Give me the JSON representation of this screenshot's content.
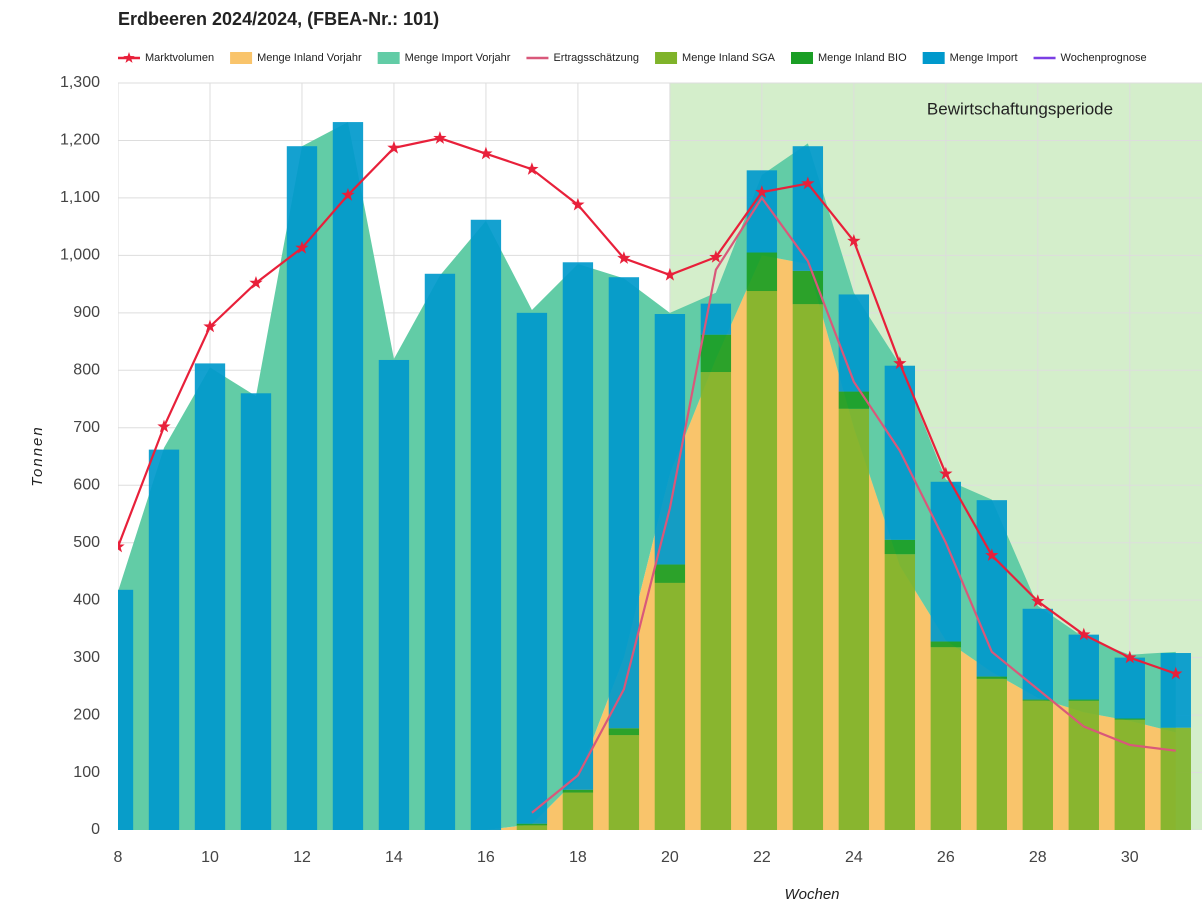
{
  "chart_data": {
    "type": "combo",
    "title": "Erdbeeren 2024/2024, (FBEA-Nr.: 101)",
    "y_label": "Tonnen",
    "x_label": "Wochen",
    "annotation": {
      "text": "Bewirtschaftungsperiode",
      "from": 20
    },
    "x": [
      8,
      9,
      10,
      11,
      12,
      13,
      14,
      15,
      16,
      17,
      18,
      19,
      20,
      21,
      22,
      23,
      24,
      25,
      26,
      27,
      28,
      29,
      30,
      31
    ],
    "xlim": [
      8,
      31.57
    ],
    "xticks": [
      8,
      10,
      12,
      14,
      16,
      18,
      20,
      22,
      24,
      26,
      28,
      30
    ],
    "ylim": [
      0,
      1300
    ],
    "yticks": [
      0,
      100,
      200,
      300,
      400,
      500,
      600,
      700,
      800,
      900,
      {
        "value": 1000,
        "label": "1,000"
      },
      {
        "value": 1100,
        "label": "1,100"
      },
      {
        "value": 1200,
        "label": "1,200"
      },
      {
        "value": 1300,
        "label": "1,300"
      }
    ],
    "grid": true,
    "series": [
      {
        "name": "Marktvolumen",
        "kind": "line",
        "marker": "star",
        "color": "#e8203a",
        "values": [
          493,
          702,
          876,
          952,
          1013,
          1105,
          1187,
          1204,
          1177,
          1150,
          1088,
          995,
          966,
          997,
          1110,
          1125,
          1025,
          812,
          620,
          478,
          398,
          340,
          300,
          272
        ]
      },
      {
        "name": "Menge Inland Vorjahr",
        "kind": "area",
        "stack": "vorjahr",
        "color": "#f9c46b",
        "values": [
          0,
          0,
          0,
          0,
          0,
          0,
          0,
          0,
          0,
          10,
          90,
          300,
          620,
          820,
          1000,
          985,
          700,
          460,
          330,
          275,
          230,
          205,
          190,
          170
        ]
      },
      {
        "name": "Menge Import Vorjahr",
        "kind": "area",
        "stack": "vorjahr",
        "color": "#62cca6",
        "values": [
          415,
          665,
          805,
          755,
          1190,
          1232,
          820,
          965,
          1060,
          895,
          895,
          660,
          280,
          115,
          140,
          210,
          235,
          350,
          280,
          300,
          160,
          130,
          115,
          140
        ]
      },
      {
        "name": "Ertragsschätzung",
        "kind": "line",
        "color": "#d9587a",
        "values": [
          null,
          null,
          null,
          null,
          null,
          null,
          null,
          null,
          null,
          30,
          95,
          245,
          560,
          975,
          1100,
          990,
          780,
          660,
          500,
          310,
          245,
          180,
          148,
          138
        ]
      },
      {
        "name": "Menge Inland SGA",
        "kind": "bar",
        "stack": "bars",
        "color": "#7fb32a",
        "values": [
          0,
          0,
          0,
          0,
          0,
          0,
          0,
          0,
          0,
          8,
          65,
          165,
          430,
          797,
          938,
          915,
          733,
          480,
          318,
          263,
          225,
          225,
          192,
          178
        ]
      },
      {
        "name": "Menge Inland BIO",
        "kind": "bar",
        "stack": "bars",
        "color": "#1a9e25",
        "values": [
          0,
          0,
          0,
          0,
          0,
          0,
          0,
          0,
          0,
          3,
          5,
          12,
          32,
          65,
          67,
          58,
          30,
          25,
          10,
          4,
          2,
          2,
          2,
          0
        ]
      },
      {
        "name": "Menge Import",
        "kind": "bar",
        "stack": "bars",
        "color": "#0099cc",
        "values": [
          418,
          662,
          812,
          760,
          1190,
          1232,
          818,
          968,
          1062,
          889,
          918,
          785,
          436,
          54,
          143,
          217,
          169,
          303,
          278,
          307,
          158,
          113,
          106,
          130
        ]
      },
      {
        "name": "Wochenprognose",
        "kind": "line",
        "color": "#7b3fe4",
        "values": [
          null,
          null,
          null,
          null,
          null,
          null,
          null,
          null,
          null,
          null,
          null,
          null,
          null,
          null,
          null,
          null,
          null,
          null,
          null,
          null,
          null,
          null,
          null,
          null
        ]
      }
    ]
  }
}
